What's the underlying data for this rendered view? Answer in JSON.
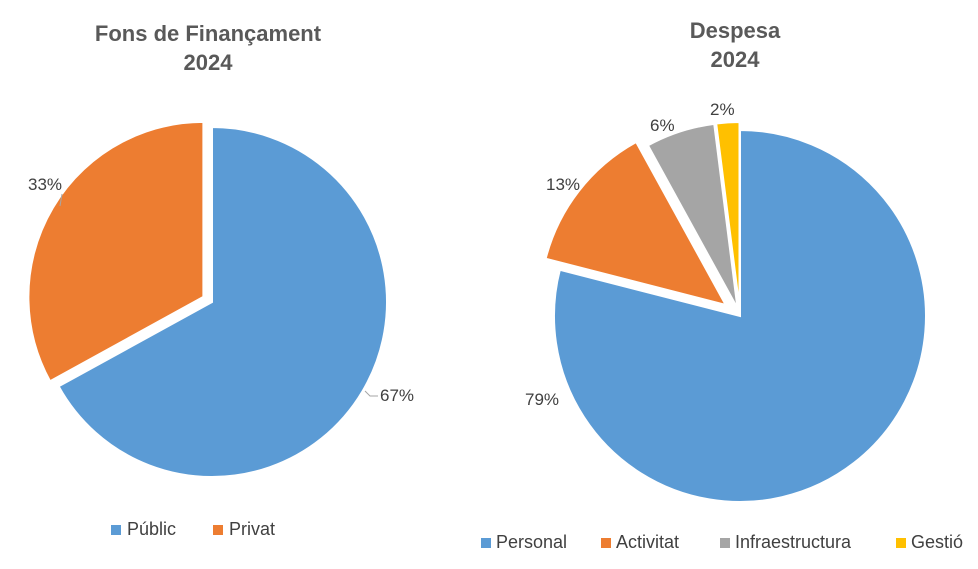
{
  "chart_data": [
    {
      "type": "pie",
      "title": "Fons de Finançament",
      "subtitle": "2024",
      "categories": [
        "Públic",
        "Privat"
      ],
      "values": [
        67,
        33
      ],
      "value_labels": [
        "67%",
        "33%"
      ],
      "colors": [
        "#5b9bd5",
        "#ed7d31"
      ],
      "legend": "bottom"
    },
    {
      "type": "pie",
      "title": "Despesa",
      "subtitle": "2024",
      "categories": [
        "Personal",
        "Activitat",
        "Infraestructura",
        "Gestió"
      ],
      "values": [
        79,
        13,
        6,
        2
      ],
      "value_labels": [
        "79%",
        "13%",
        "6%",
        "2%"
      ],
      "colors": [
        "#5b9bd5",
        "#ed7d31",
        "#a5a5a5",
        "#ffc000"
      ],
      "legend": "bottom"
    }
  ]
}
